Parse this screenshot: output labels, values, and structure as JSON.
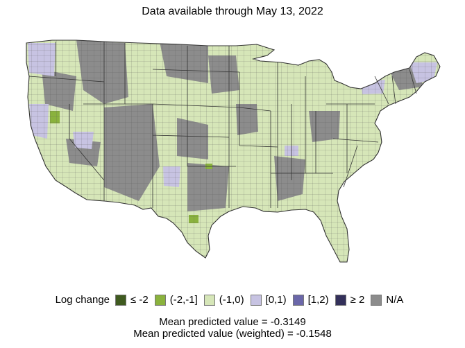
{
  "title": "Data available through May 13, 2022",
  "legend": {
    "label": "Log change",
    "items": [
      {
        "label": "≤ -2",
        "color": "#3f5a1f"
      },
      {
        "label": "(-2,-1]",
        "color": "#8ab23d"
      },
      {
        "label": "(-1,0)",
        "color": "#d6e6b8"
      },
      {
        "label": "[0,1)",
        "color": "#c7c3e2"
      },
      {
        "label": "[1,2)",
        "color": "#6b67a9"
      },
      {
        "label": "≥ 2",
        "color": "#33305a"
      },
      {
        "label": "N/A",
        "color": "#8c8c8c"
      }
    ]
  },
  "stats": {
    "mean": "Mean predicted value = -0.3149",
    "mean_weighted": "Mean predicted value (weighted) = -0.1548"
  },
  "map": {
    "region": "Contiguous United States, county level",
    "border_color": "#333333"
  }
}
